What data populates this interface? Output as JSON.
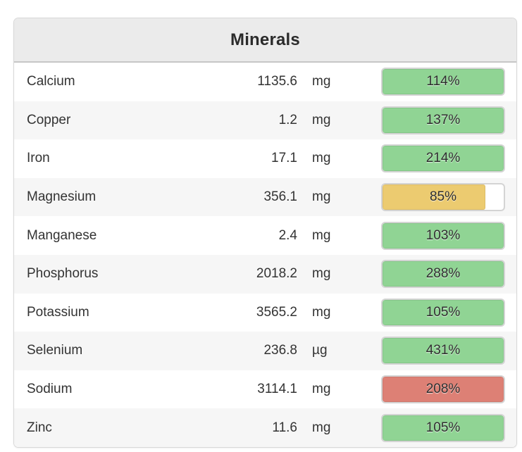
{
  "card": {
    "title": "Minerals"
  },
  "columns": [
    "name",
    "amount",
    "unit",
    "percent_of_target"
  ],
  "rows": [
    {
      "name": "Calcium",
      "amount": "1135.6",
      "unit": "mg",
      "percent_label": "114%",
      "fill_percent": 100,
      "status": "green"
    },
    {
      "name": "Copper",
      "amount": "1.2",
      "unit": "mg",
      "percent_label": "137%",
      "fill_percent": 100,
      "status": "green"
    },
    {
      "name": "Iron",
      "amount": "17.1",
      "unit": "mg",
      "percent_label": "214%",
      "fill_percent": 100,
      "status": "green"
    },
    {
      "name": "Magnesium",
      "amount": "356.1",
      "unit": "mg",
      "percent_label": "85%",
      "fill_percent": 85,
      "status": "yellow"
    },
    {
      "name": "Manganese",
      "amount": "2.4",
      "unit": "mg",
      "percent_label": "103%",
      "fill_percent": 100,
      "status": "green"
    },
    {
      "name": "Phosphorus",
      "amount": "2018.2",
      "unit": "mg",
      "percent_label": "288%",
      "fill_percent": 100,
      "status": "green"
    },
    {
      "name": "Potassium",
      "amount": "3565.2",
      "unit": "mg",
      "percent_label": "105%",
      "fill_percent": 100,
      "status": "green"
    },
    {
      "name": "Selenium",
      "amount": "236.8",
      "unit": "µg",
      "percent_label": "431%",
      "fill_percent": 100,
      "status": "green"
    },
    {
      "name": "Sodium",
      "amount": "3114.1",
      "unit": "mg",
      "percent_label": "208%",
      "fill_percent": 100,
      "status": "red"
    },
    {
      "name": "Zinc",
      "amount": "11.6",
      "unit": "mg",
      "percent_label": "105%",
      "fill_percent": 100,
      "status": "green"
    }
  ],
  "colors": {
    "green": "#90d494",
    "yellow": "#eccb70",
    "red": "#dd8075",
    "header_bg": "#ebebeb",
    "row_alt_bg": "#f6f6f6",
    "bar_border": "#d4d4d4",
    "text": "#333333"
  }
}
